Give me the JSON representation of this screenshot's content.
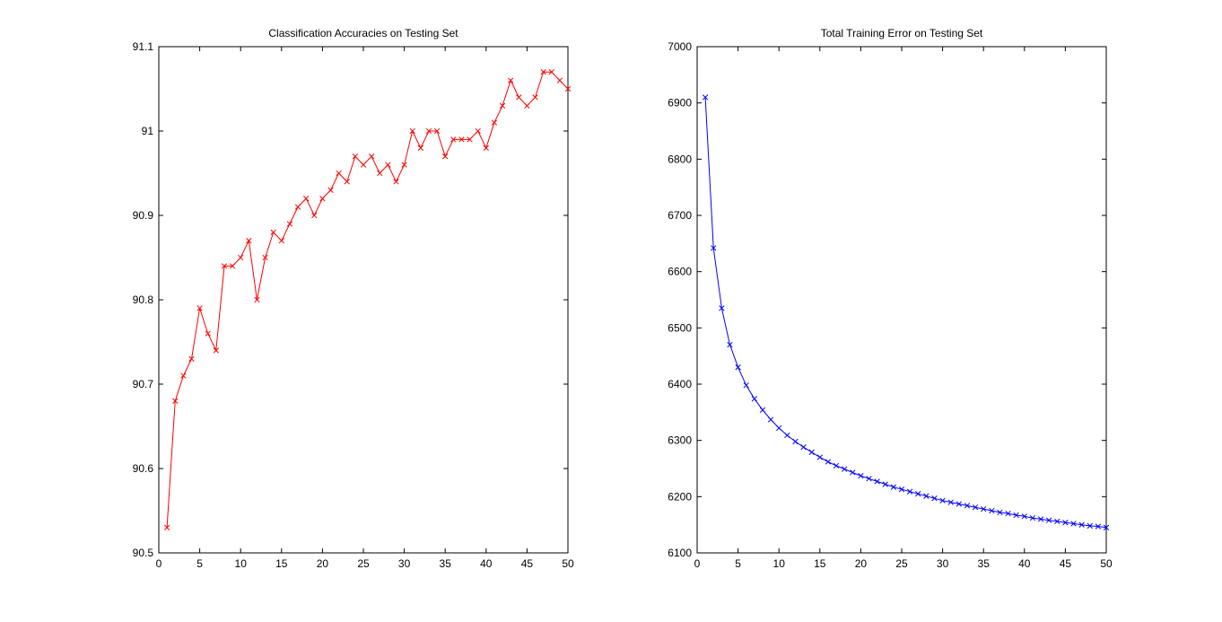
{
  "chart_data": [
    {
      "type": "line",
      "title": "Classification Accuracies on Testing Set",
      "xlabel": "",
      "ylabel": "",
      "xlim": [
        0,
        50
      ],
      "ylim": [
        90.5,
        91.1
      ],
      "x_ticks": [
        0,
        5,
        10,
        15,
        20,
        25,
        30,
        35,
        40,
        45,
        50
      ],
      "x_tick_labels": [
        "0",
        "5",
        "10",
        "15",
        "20",
        "25",
        "30",
        "35",
        "40",
        "45",
        "50"
      ],
      "y_ticks": [
        90.5,
        90.6,
        90.7,
        90.8,
        90.9,
        91.0,
        91.1
      ],
      "y_tick_labels": [
        "90.5",
        "90.6",
        "90.7",
        "90.8",
        "90.9",
        "91",
        "91.1"
      ],
      "grid": false,
      "series": [
        {
          "color": "#ff0000",
          "marker": "x",
          "x": [
            1,
            2,
            3,
            4,
            5,
            6,
            7,
            8,
            9,
            10,
            11,
            12,
            13,
            14,
            15,
            16,
            17,
            18,
            19,
            20,
            21,
            22,
            23,
            24,
            25,
            26,
            27,
            28,
            29,
            30,
            31,
            32,
            33,
            34,
            35,
            36,
            37,
            38,
            39,
            40,
            41,
            42,
            43,
            44,
            45,
            46,
            47,
            48,
            49,
            50
          ],
          "values": [
            90.53,
            90.68,
            90.71,
            90.73,
            90.79,
            90.76,
            90.74,
            90.84,
            90.84,
            90.85,
            90.87,
            90.8,
            90.85,
            90.88,
            90.87,
            90.89,
            90.91,
            90.92,
            90.9,
            90.92,
            90.93,
            90.95,
            90.94,
            90.97,
            90.96,
            90.97,
            90.95,
            90.96,
            90.94,
            90.96,
            91.0,
            90.98,
            91.0,
            91.0,
            90.97,
            90.99,
            90.99,
            90.99,
            91.0,
            90.98,
            91.01,
            91.03,
            91.06,
            91.04,
            91.03,
            91.04,
            91.07,
            91.07,
            91.06,
            91.05
          ]
        }
      ]
    },
    {
      "type": "line",
      "title": "Total Training Error on Testing Set",
      "xlabel": "",
      "ylabel": "",
      "xlim": [
        0,
        50
      ],
      "ylim": [
        6100,
        7000
      ],
      "x_ticks": [
        0,
        5,
        10,
        15,
        20,
        25,
        30,
        35,
        40,
        45,
        50
      ],
      "x_tick_labels": [
        "0",
        "5",
        "10",
        "15",
        "20",
        "25",
        "30",
        "35",
        "40",
        "45",
        "50"
      ],
      "y_ticks": [
        6100,
        6200,
        6300,
        6400,
        6500,
        6600,
        6700,
        6800,
        6900,
        7000
      ],
      "y_tick_labels": [
        "6100",
        "6200",
        "6300",
        "6400",
        "6500",
        "6600",
        "6700",
        "6800",
        "6900",
        "7000"
      ],
      "grid": false,
      "series": [
        {
          "color": "#0000ff",
          "marker": "x",
          "x": [
            1,
            2,
            3,
            4,
            5,
            6,
            7,
            8,
            9,
            10,
            11,
            12,
            13,
            14,
            15,
            16,
            17,
            18,
            19,
            20,
            21,
            22,
            23,
            24,
            25,
            26,
            27,
            28,
            29,
            30,
            31,
            32,
            33,
            34,
            35,
            36,
            37,
            38,
            39,
            40,
            41,
            42,
            43,
            44,
            45,
            46,
            47,
            48,
            49,
            50
          ],
          "values": [
            6910,
            6642,
            6535,
            6470,
            6430,
            6398,
            6374,
            6354,
            6337,
            6322,
            6309,
            6298,
            6288,
            6279,
            6270,
            6262,
            6255,
            6249,
            6243,
            6237,
            6232,
            6227,
            6222,
            6217,
            6213,
            6209,
            6205,
            6201,
            6197,
            6193,
            6190,
            6187,
            6184,
            6181,
            6178,
            6175,
            6172,
            6170,
            6167,
            6165,
            6162,
            6160,
            6158,
            6156,
            6154,
            6152,
            6150,
            6148,
            6147,
            6145
          ]
        }
      ]
    }
  ]
}
